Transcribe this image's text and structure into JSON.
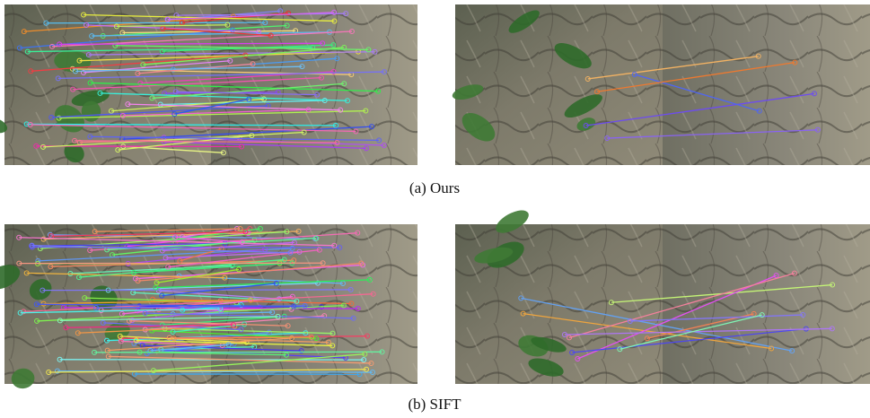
{
  "figure": {
    "panels": [
      {
        "caption": "(a) Ours"
      },
      {
        "caption": "(b) SIFT"
      }
    ]
  }
}
